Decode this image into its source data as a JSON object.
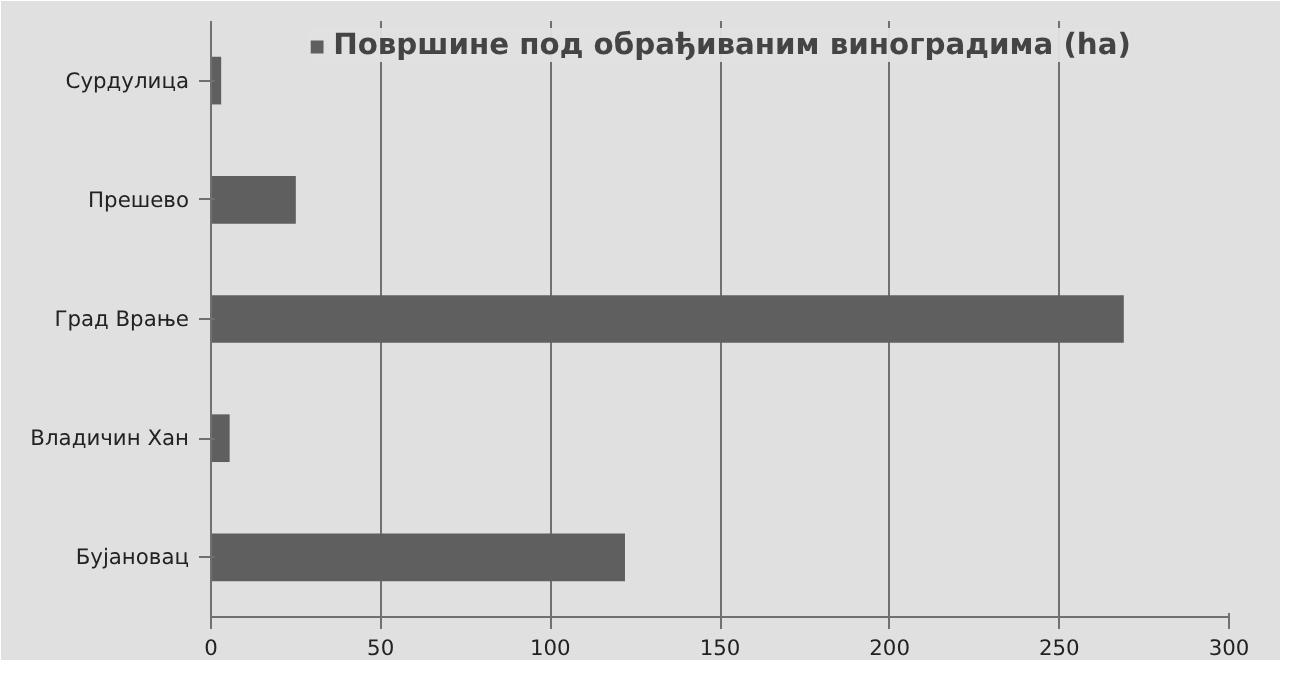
{
  "chart_data": {
    "type": "bar",
    "orientation": "horizontal",
    "categories": [
      "Сурдулица",
      "Прешево",
      "Град Врање",
      "Владичин Хан",
      "Бујановац"
    ],
    "series": [
      {
        "name": "Површине под обрађиваним виноградима (ha)",
        "color": "#5f5f5f",
        "values": [
          3,
          25,
          269,
          5.5,
          122
        ]
      }
    ],
    "xlim": [
      0,
      300
    ],
    "xticks": [
      0,
      50,
      100,
      150,
      200,
      250,
      300
    ],
    "grid": "x",
    "legend": "top"
  }
}
